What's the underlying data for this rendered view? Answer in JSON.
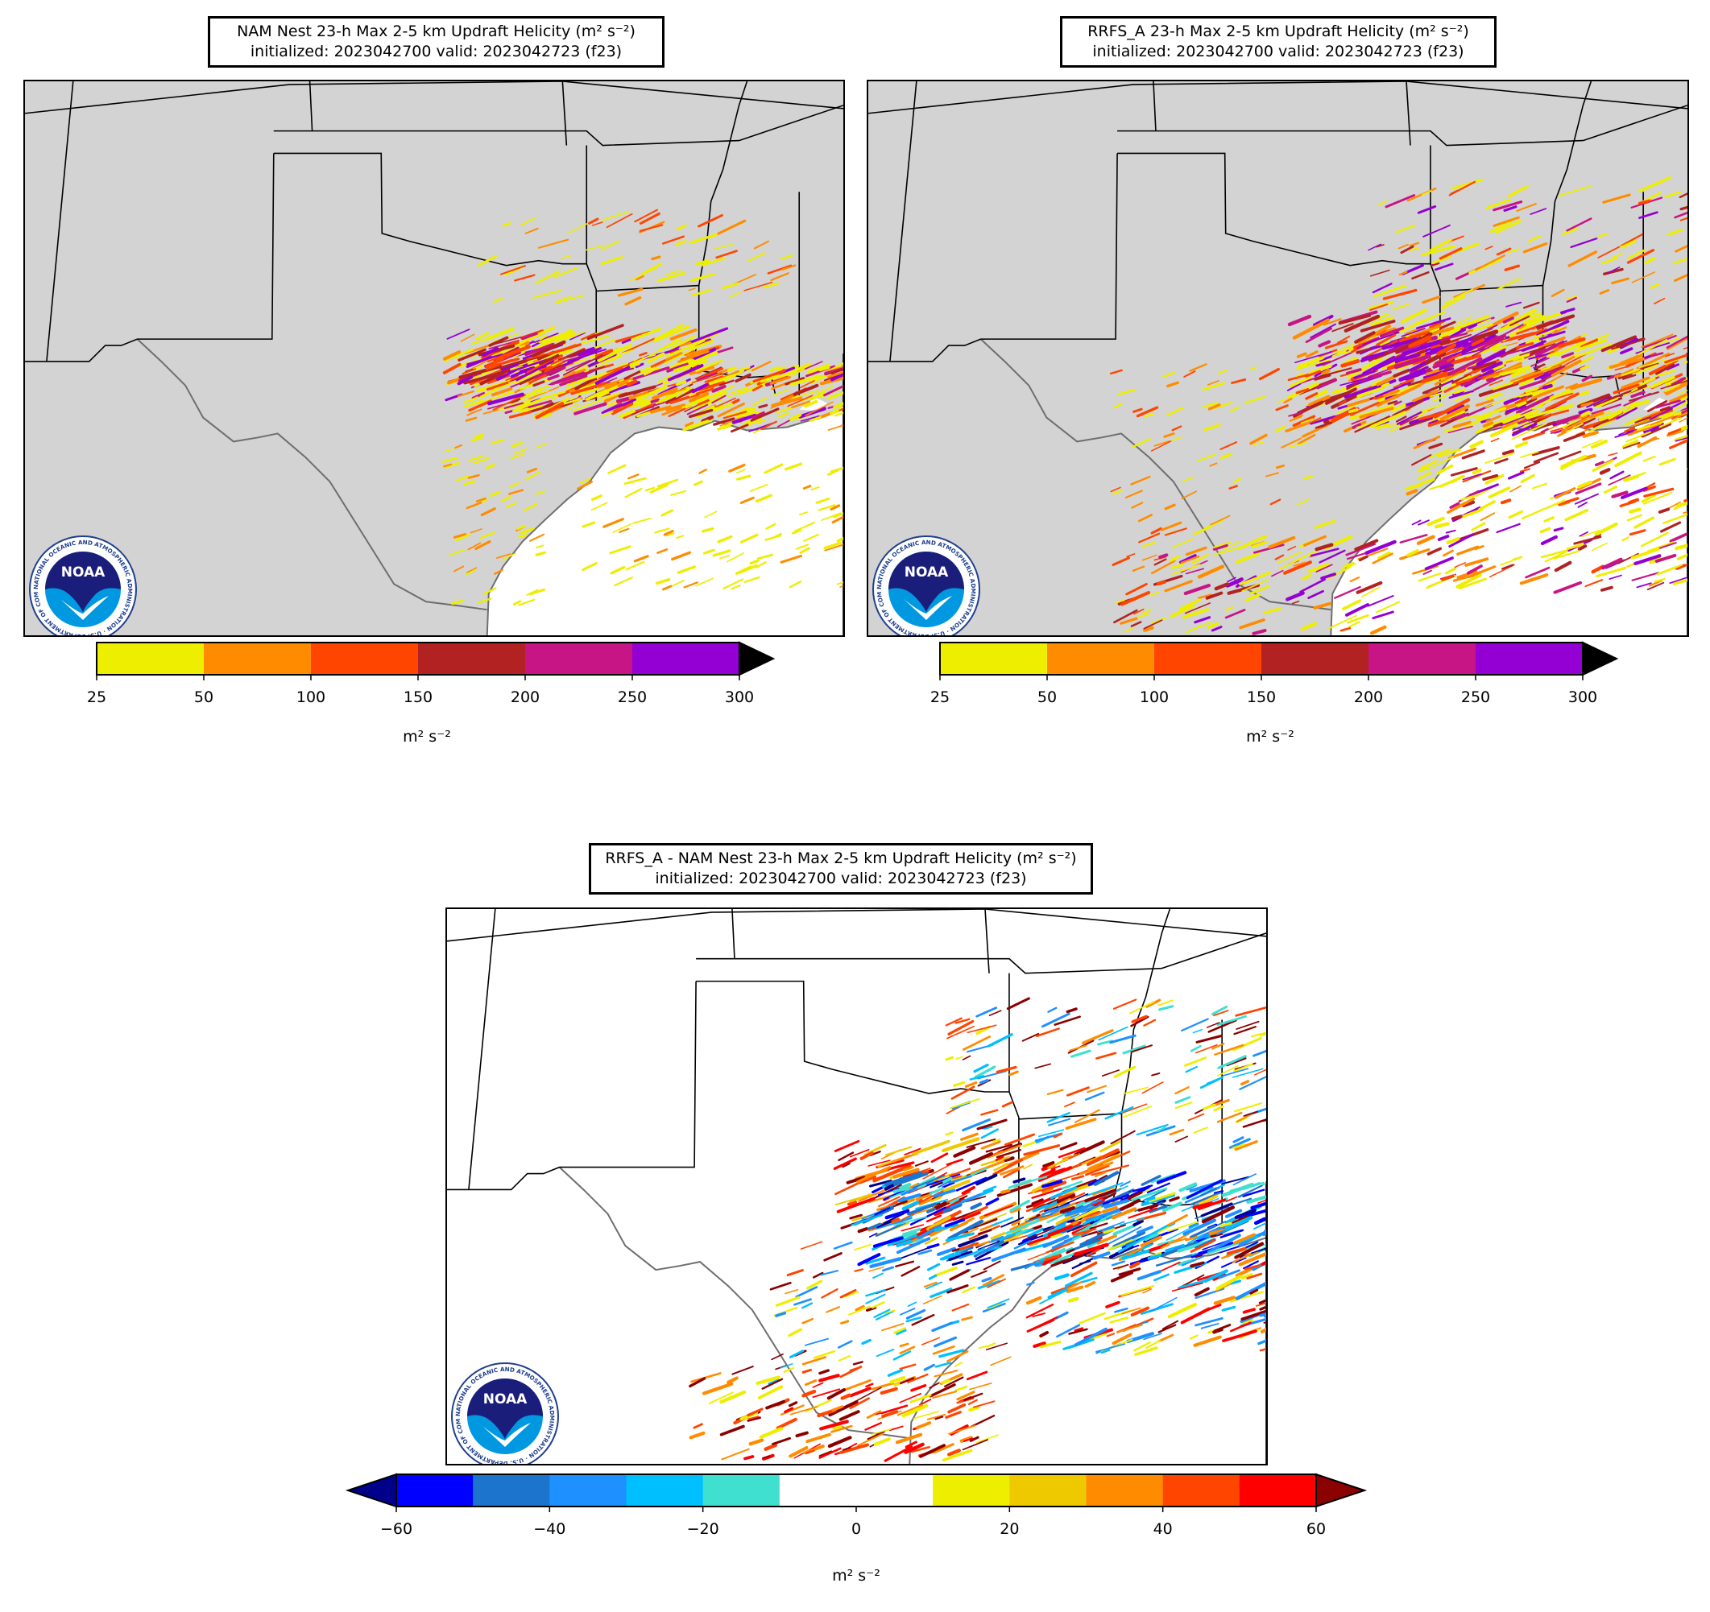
{
  "panels": [
    {
      "id": "nam",
      "title_line1": "NAM Nest 23-h Max 2-5 km Updraft Helicity",
      "title_units": "(m² s⁻²)",
      "title_line2": "initialized: 2023042700 valid: 2023042723 (f23)",
      "colorbar": {
        "ticks": [
          "25",
          "50",
          "100",
          "150",
          "200",
          "250",
          "300"
        ],
        "colors": [
          "#eeee00",
          "#ff8c00",
          "#ff4500",
          "#b22222",
          "#c71585",
          "#9400d3"
        ],
        "extend_color": "#000000",
        "unit_label": "m² s⁻²"
      }
    },
    {
      "id": "rrfs",
      "title_line1": "RRFS_A 23-h Max 2-5 km Updraft Helicity",
      "title_units": "(m² s⁻²)",
      "title_line2": "initialized: 2023042700 valid: 2023042723 (f23)",
      "colorbar": {
        "ticks": [
          "25",
          "50",
          "100",
          "150",
          "200",
          "250",
          "300"
        ],
        "colors": [
          "#eeee00",
          "#ff8c00",
          "#ff4500",
          "#b22222",
          "#c71585",
          "#9400d3"
        ],
        "extend_color": "#000000",
        "unit_label": "m² s⁻²"
      }
    },
    {
      "id": "diff",
      "title_line1": "RRFS_A - NAM Nest 23-h Max 2-5 km Updraft Helicity",
      "title_units": "(m² s⁻²)",
      "title_line2": "initialized: 2023042700 valid: 2023042723 (f23)",
      "colorbar": {
        "ticks": [
          "−60",
          "−40",
          "−20",
          "0",
          "20",
          "40",
          "60"
        ],
        "colors": [
          "#0000ff",
          "#1c74cd",
          "#1e90ff",
          "#00bfff",
          "#40e0d0",
          "#ffffff",
          "#ffffff",
          "#eeee00",
          "#eec900",
          "#ff8c00",
          "#ff4500",
          "#ff0000"
        ],
        "extend_low_color": "#00008b",
        "extend_high_color": "#8b0000",
        "unit_label": "m² s⁻²"
      }
    }
  ],
  "map_colors": {
    "land": "#d3d3d3",
    "water": "#ffffff",
    "borders": "#000000",
    "coast": "#6e6e6e"
  },
  "logo": {
    "text": "NOAA",
    "ring_text": "NATIONAL OCEANIC AND ATMOSPHERIC ADMINISTRATION · U.S. DEPARTMENT OF COMMERCE ·"
  }
}
